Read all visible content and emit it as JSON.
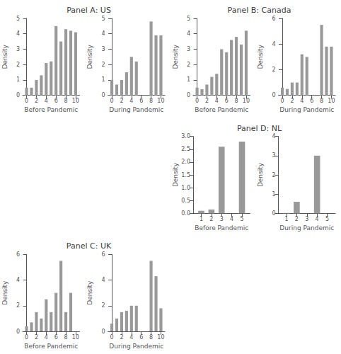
{
  "chart_data": [
    {
      "type": "bar",
      "title": "Panel A: US",
      "xlabel": "Before Pandemic",
      "ylabel": "Density",
      "x": [
        0,
        1,
        2,
        3,
        4,
        5,
        6,
        7,
        8,
        9,
        10
      ],
      "values": [
        0.5,
        0.5,
        1.0,
        1.3,
        2.1,
        2.2,
        4.5,
        3.5,
        4.3,
        4.2,
        4.1
      ],
      "xlim": [
        -0.8,
        10.8
      ],
      "xticks": [
        0,
        2,
        4,
        6,
        8,
        10
      ],
      "ylim": [
        0,
        5
      ],
      "yticks": [
        0,
        1,
        2,
        3,
        4,
        5
      ],
      "color": "#999999",
      "grid": false
    },
    {
      "type": "bar",
      "xlabel": "During Pandemic",
      "ylabel": "Density",
      "x": [
        0,
        1,
        2,
        3,
        4,
        5,
        6,
        7,
        8,
        9,
        10
      ],
      "values": [
        1.0,
        0.7,
        1.0,
        1.5,
        2.5,
        2.2,
        0.0,
        0.0,
        4.8,
        3.9,
        3.9
      ],
      "xlim": [
        -0.8,
        10.8
      ],
      "xticks": [
        0,
        2,
        4,
        6,
        8,
        10
      ],
      "ylim": [
        0,
        5
      ],
      "yticks": [
        0,
        1,
        2,
        3,
        4,
        5
      ],
      "color": "#999999",
      "grid": false
    },
    {
      "type": "bar",
      "title": "Panel B: Canada",
      "xlabel": "Before Pandemic",
      "ylabel": "Density",
      "x": [
        0,
        1,
        2,
        3,
        4,
        5,
        6,
        7,
        8,
        9,
        10
      ],
      "values": [
        0.5,
        0.4,
        0.7,
        1.2,
        1.4,
        3.0,
        2.8,
        3.6,
        3.8,
        3.3,
        4.2
      ],
      "xlim": [
        -0.8,
        10.8
      ],
      "xticks": [
        0,
        2,
        4,
        6,
        8,
        10
      ],
      "ylim": [
        0,
        5
      ],
      "yticks": [
        0,
        1,
        2,
        3,
        4,
        5
      ],
      "color": "#999999",
      "grid": false
    },
    {
      "type": "bar",
      "xlabel": "During Pandemic",
      "ylabel": "Density",
      "x": [
        0,
        1,
        2,
        3,
        4,
        5,
        6,
        7,
        8,
        9,
        10
      ],
      "values": [
        0.6,
        0.5,
        1.0,
        1.0,
        3.2,
        3.0,
        0.0,
        0.0,
        5.5,
        3.8,
        3.8
      ],
      "xlim": [
        -0.8,
        10.8
      ],
      "xticks": [
        0,
        2,
        4,
        6,
        8,
        10
      ],
      "ylim": [
        0,
        6
      ],
      "yticks": [
        0,
        2,
        4,
        6
      ],
      "color": "#999999",
      "grid": false
    },
    {
      "type": "bar",
      "title": "Panel D: NL",
      "xlabel": "Before Pandemic",
      "ylabel": "Density",
      "x": [
        1,
        2,
        3,
        4,
        5
      ],
      "values": [
        0.1,
        0.15,
        2.6,
        0.0,
        2.8
      ],
      "xlim": [
        0.2,
        5.8
      ],
      "xticks": [
        1,
        2,
        3,
        4,
        5
      ],
      "ylim": [
        0,
        3.0
      ],
      "yticks": [
        {
          "value": 0,
          "label": "0.0"
        },
        0.5,
        {
          "value": 1,
          "label": "1.0"
        },
        1.5,
        {
          "value": 2,
          "label": "2.0"
        },
        2.5,
        {
          "value": 3,
          "label": "3.0"
        }
      ],
      "color": "#999999",
      "grid": false
    },
    {
      "type": "bar",
      "xlabel": "During Pandemic",
      "ylabel": "Density",
      "x": [
        1,
        2,
        3,
        4,
        5
      ],
      "values": [
        0.02,
        0.6,
        0.0,
        3.0,
        0.0
      ],
      "xlim": [
        0.2,
        5.8
      ],
      "xticks": [
        1,
        2,
        3,
        4,
        5
      ],
      "ylim": [
        0,
        4
      ],
      "yticks": [
        0,
        1,
        2,
        3,
        4
      ],
      "color": "#999999",
      "grid": false
    },
    {
      "type": "bar",
      "title": "Panel C: UK",
      "xlabel": "Before Pandemic",
      "ylabel": "Density",
      "x": [
        0,
        1,
        2,
        3,
        4,
        5,
        6,
        7,
        8,
        9,
        10
      ],
      "values": [
        0.4,
        0.7,
        1.5,
        1.0,
        2.5,
        1.5,
        3.0,
        5.5,
        1.5,
        3.0,
        0.0
      ],
      "xlim": [
        -0.8,
        10.8
      ],
      "xticks": [
        0,
        2,
        4,
        6,
        8,
        10
      ],
      "ylim": [
        0,
        6
      ],
      "yticks": [
        0,
        2,
        4,
        6
      ],
      "color": "#999999",
      "grid": false
    },
    {
      "type": "bar",
      "xlabel": "During Pandemic",
      "ylabel": "Density",
      "x": [
        0,
        1,
        2,
        3,
        4,
        5,
        6,
        7,
        8,
        9,
        10
      ],
      "values": [
        0.6,
        1.0,
        1.5,
        1.6,
        2.0,
        2.0,
        0.0,
        0.0,
        5.5,
        4.3,
        1.8
      ],
      "xlim": [
        -0.8,
        10.8
      ],
      "xticks": [
        0,
        2,
        4,
        6,
        8,
        10
      ],
      "ylim": [
        0,
        6
      ],
      "yticks": [
        0,
        2,
        4,
        6
      ],
      "color": "#999999",
      "grid": false
    }
  ]
}
